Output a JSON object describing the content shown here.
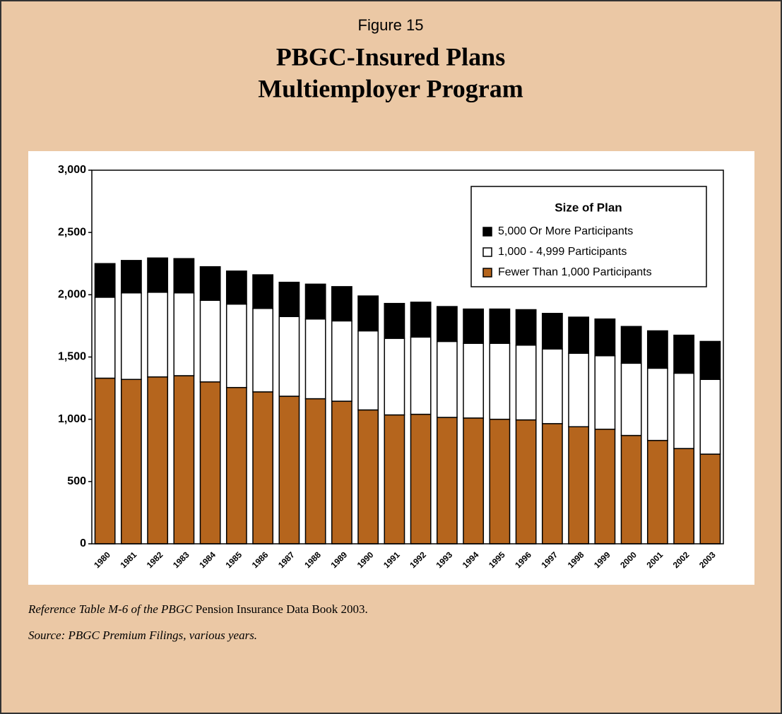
{
  "chart_data": {
    "type": "stacked_bar",
    "figure_label": "Figure 15",
    "title": [
      "PBGC-Insured Plans",
      "Multiemployer Program"
    ],
    "categories": [
      "1980",
      "1981",
      "1982",
      "1983",
      "1984",
      "1985",
      "1986",
      "1987",
      "1988",
      "1989",
      "1990",
      "1991",
      "1992",
      "1993",
      "1994",
      "1995",
      "1996",
      "1997",
      "1998",
      "1999",
      "2000",
      "2001",
      "2002",
      "2003"
    ],
    "series": [
      {
        "name": "Fewer Than 1,000 Participants",
        "color": "#b5651d",
        "values": [
          1330,
          1320,
          1340,
          1350,
          1300,
          1255,
          1220,
          1185,
          1165,
          1145,
          1075,
          1035,
          1040,
          1015,
          1010,
          1000,
          995,
          965,
          940,
          920,
          870,
          830,
          765,
          720
        ]
      },
      {
        "name": "1,000 - 4,999 Participants",
        "color": "#ffffff",
        "values": [
          650,
          695,
          680,
          665,
          655,
          670,
          670,
          640,
          640,
          645,
          635,
          615,
          620,
          610,
          600,
          610,
          600,
          600,
          590,
          590,
          580,
          580,
          605,
          600
        ]
      },
      {
        "name": "5,000 Or More Participants",
        "color": "#000000",
        "values": [
          270,
          260,
          275,
          275,
          270,
          265,
          270,
          275,
          280,
          275,
          280,
          280,
          280,
          280,
          275,
          275,
          285,
          285,
          290,
          295,
          295,
          300,
          305,
          305
        ]
      }
    ],
    "legend_title": "Size of Plan",
    "legend": "upper right",
    "ylim": [
      0,
      3000
    ],
    "yticks": [
      0,
      {
        "value": 500,
        "label": "500"
      },
      {
        "value": 1000,
        "label": "1,000"
      },
      {
        "value": 1500,
        "label": "1,500"
      },
      {
        "value": 2000,
        "label": "2,000"
      },
      {
        "value": 2500,
        "label": "2,500"
      },
      {
        "value": 3000,
        "label": "3,000"
      }
    ],
    "footnote": [
      "Reference Table M-6 of the PBGC",
      "Pension Insurance Data Book 2003."
    ],
    "source": "Source: PBGC Premium Filings, various years."
  }
}
